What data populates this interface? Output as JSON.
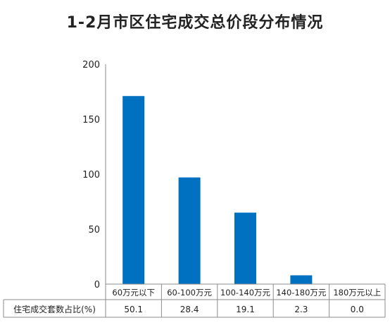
{
  "chart_data": {
    "type": "bar",
    "title": "1-2月市区住宅成交总价段分布情况",
    "categories": [
      "60万元以下",
      "60-100万元",
      "100-140万元",
      "140-180万元",
      "180万元以上"
    ],
    "values": [
      171,
      97,
      65,
      8,
      0
    ],
    "ylim": [
      0,
      200
    ],
    "yticks": [
      0,
      50,
      100,
      150,
      200
    ],
    "bar_color": "#0070C0",
    "grid": false,
    "legend": "none",
    "table": {
      "row_label": "住宅成交套数占比(%)",
      "values": [
        "50.1",
        "28.4",
        "19.1",
        "2.3",
        "0.0"
      ]
    }
  }
}
